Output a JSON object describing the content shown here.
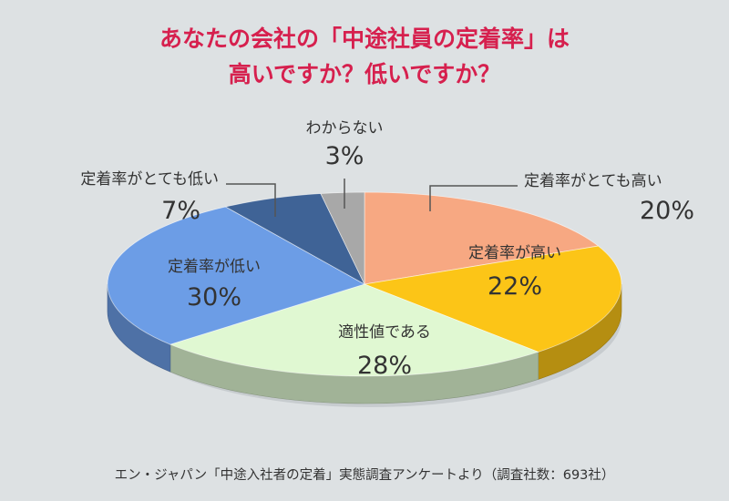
{
  "chart_data": {
    "type": "pie",
    "title_lines": [
      "あなたの会社の「中途社員の定着率」は",
      "高いですか？低いですか？"
    ],
    "slices": [
      {
        "label": "定着率がとても高い",
        "value": 20,
        "display": "20%",
        "color": "#f7a882"
      },
      {
        "label": "定着率が高い",
        "value": 22,
        "display": "22%",
        "color": "#fcc517"
      },
      {
        "label": "適性値である",
        "value": 28,
        "display": "28%",
        "color": "#e0f8d2"
      },
      {
        "label": "定着率が低い",
        "value": 30,
        "display": "30%",
        "color": "#6c9de6"
      },
      {
        "label": "定着率がとても低い",
        "value": 7,
        "display": "7%",
        "color": "#3f6396"
      },
      {
        "label": "わからない",
        "value": 3,
        "display": "3%",
        "color": "#a8a8a8"
      }
    ],
    "legend": "none",
    "source_note": "エン・ジャパン「中途入社者の定着」実態調査アンケートより（調査社数：693社）"
  }
}
